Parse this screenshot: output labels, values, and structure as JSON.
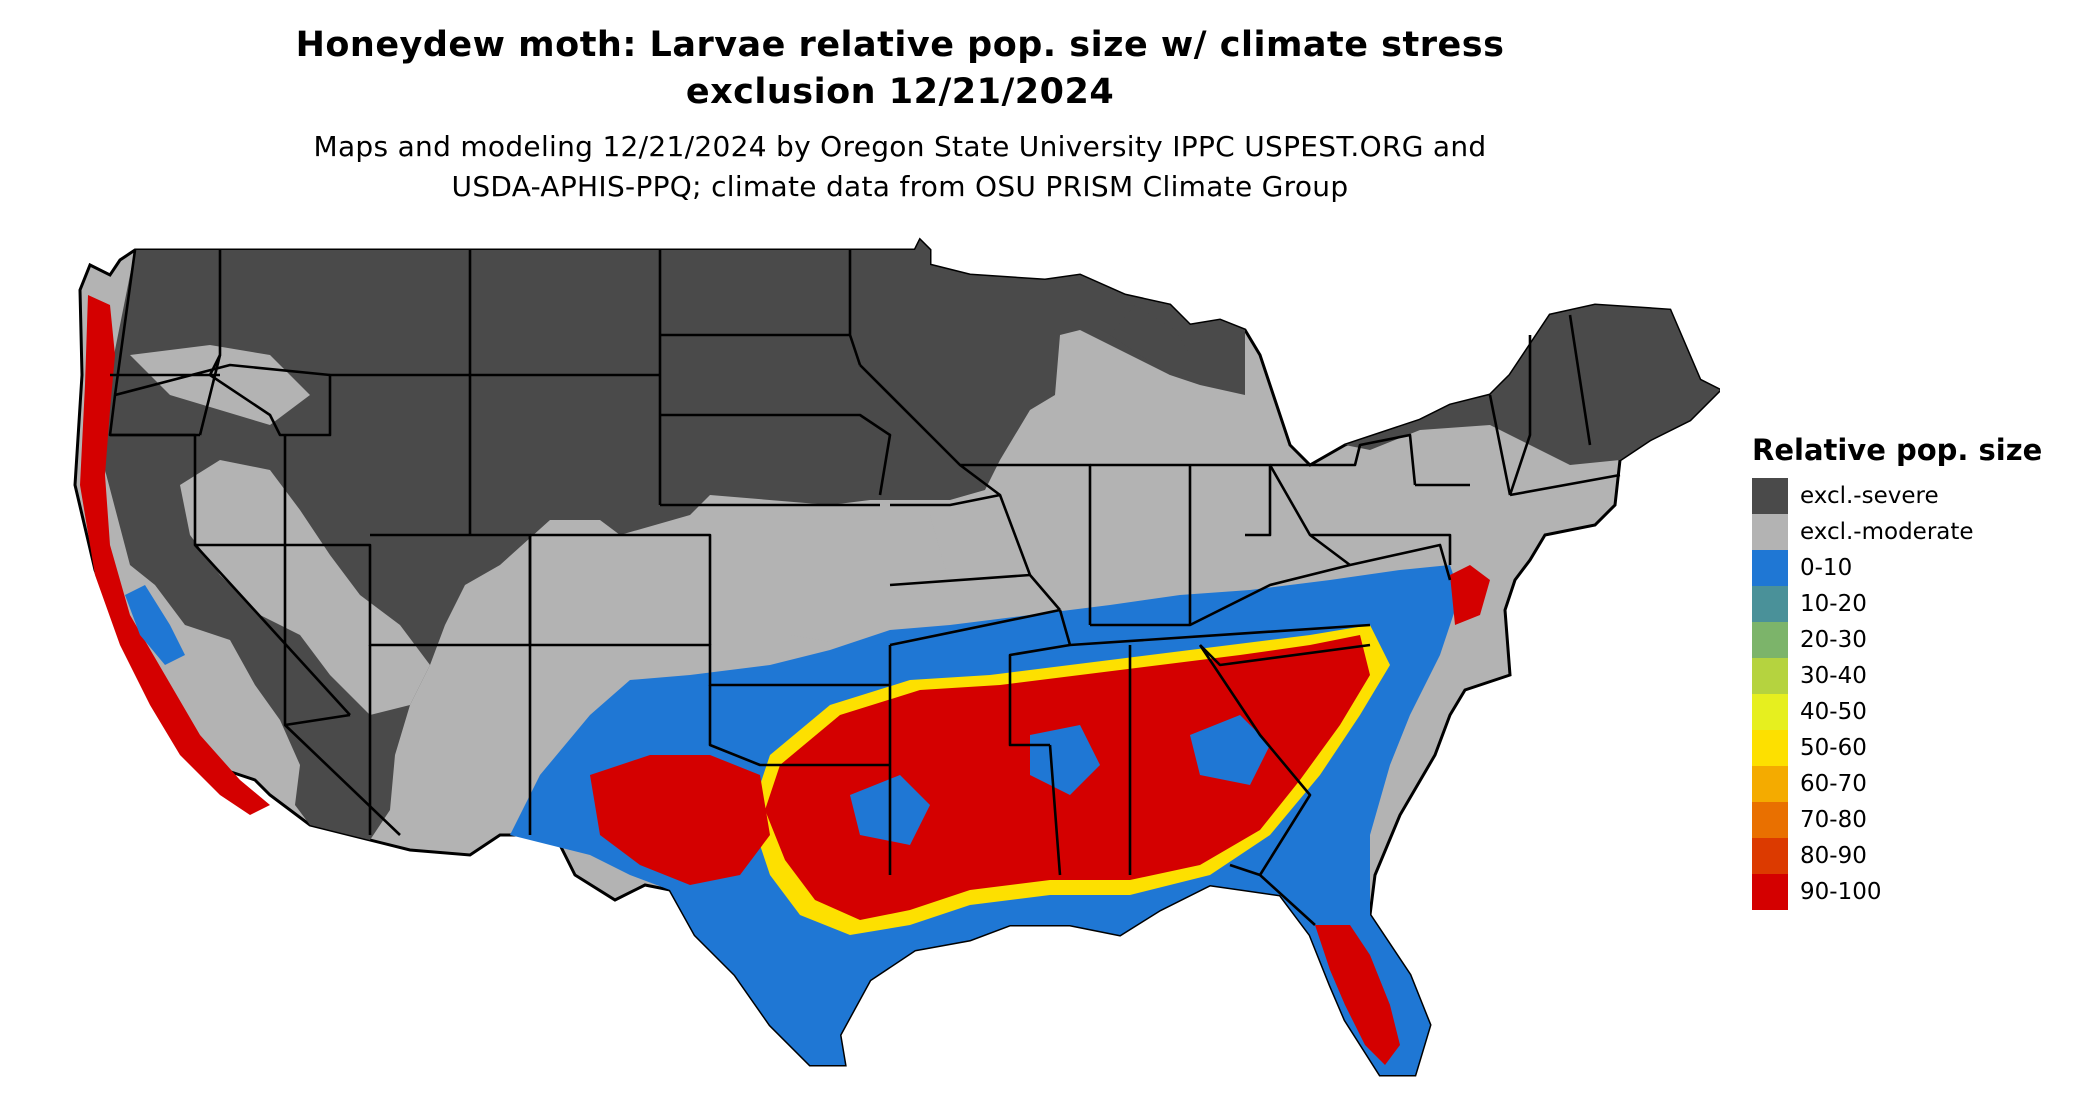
{
  "title_line1": "Honeydew moth: Larvae relative pop. size w/ climate stress",
  "title_line2": "exclusion 12/21/2024",
  "subtitle_line1": "Maps and modeling 12/21/2024 by Oregon State University IPPC USPEST.ORG and",
  "subtitle_line2": "USDA-APHIS-PPQ; climate data from OSU PRISM Climate Group",
  "legend": {
    "title": "Relative pop. size",
    "items": [
      {
        "label": "excl.-severe",
        "color": "#4a4a4a"
      },
      {
        "label": "excl.-moderate",
        "color": "#b3b3b3"
      },
      {
        "label": "0-10",
        "color": "#1f77d4"
      },
      {
        "label": "10-20",
        "color": "#4a9199"
      },
      {
        "label": "20-30",
        "color": "#7cb46a"
      },
      {
        "label": "30-40",
        "color": "#b5d33f"
      },
      {
        "label": "40-50",
        "color": "#e6ef1f"
      },
      {
        "label": "50-60",
        "color": "#fde000"
      },
      {
        "label": "60-70",
        "color": "#f4ab00"
      },
      {
        "label": "70-80",
        "color": "#e97000"
      },
      {
        "label": "80-90",
        "color": "#dc3a00"
      },
      {
        "label": "90-100",
        "color": "#d40000"
      }
    ]
  }
}
